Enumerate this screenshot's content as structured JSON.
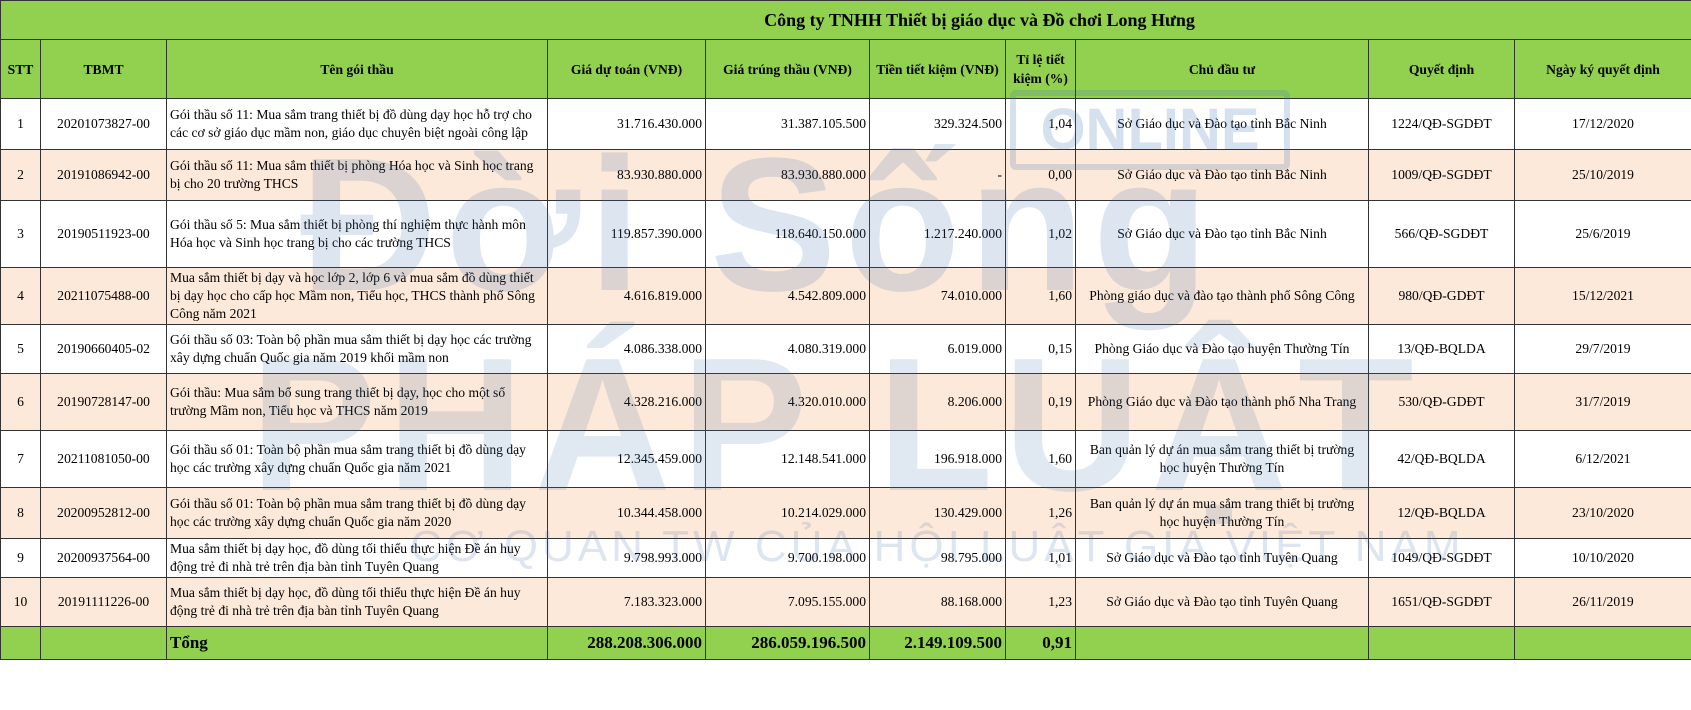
{
  "title": "Công ty TNHH Thiết bị giáo dục và Đồ chơi Long Hưng",
  "headers": {
    "stt": "STT",
    "tbmt": "TBMT",
    "ten_goi_thau": "Tên gói thầu",
    "gia_du_toan": "Giá dự toán (VNĐ)",
    "gia_trung_thau": "Giá trúng thầu (VNĐ)",
    "tien_tiet_kiem": "Tiền tiết kiệm (VNĐ)",
    "ti_le": "Tỉ lệ tiết kiệm (%)",
    "chu_dau_tu": "Chủ đầu tư",
    "quyet_dinh": "Quyết định",
    "ngay_ky": "Ngày ký quyết định"
  },
  "rows": [
    {
      "stt": "1",
      "tbmt": "20201073827-00",
      "ten": "Gói thầu số 11: Mua sắm trang thiết bị đồ dùng dạy học hỗ trợ cho các cơ sở giáo dục mầm non, giáo dục chuyên biệt ngoài công lập",
      "du_toan": "31.716.430.000",
      "trung_thau": "31.387.105.500",
      "tiet_kiem": "329.324.500",
      "ti_le": "1,04",
      "chu_dau_tu": "Sở Giáo dục và Đào tạo tỉnh Bắc Ninh",
      "quyet_dinh": "1224/QĐ-SGDĐT",
      "ngay": "17/12/2020"
    },
    {
      "stt": "2",
      "tbmt": "20191086942-00",
      "ten": "Gói thầu số 11: Mua sắm thiết bị phòng Hóa học và Sinh học trang bị cho 20 trường THCS",
      "du_toan": "83.930.880.000",
      "trung_thau": "83.930.880.000",
      "tiet_kiem": "-",
      "ti_le": "0,00",
      "chu_dau_tu": "Sở Giáo dục và Đào tạo tỉnh Bắc Ninh",
      "quyet_dinh": "1009/QĐ-SGDĐT",
      "ngay": "25/10/2019"
    },
    {
      "stt": "3",
      "tbmt": "20190511923-00",
      "ten": "Gói thầu số 5: Mua sắm thiết bị phòng thí nghiệm thực hành môn Hóa học và Sinh học trang bị cho các trường THCS",
      "du_toan": "119.857.390.000",
      "trung_thau": "118.640.150.000",
      "tiet_kiem": "1.217.240.000",
      "ti_le": "1,02",
      "chu_dau_tu": "Sở Giáo dục và Đào tạo tỉnh Bắc Ninh",
      "quyet_dinh": "566/QĐ-SGDĐT",
      "ngay": "25/6/2019"
    },
    {
      "stt": "4",
      "tbmt": "20211075488-00",
      "ten": "Mua sắm thiết bị dạy và học lớp 2, lớp 6 và mua sắm đồ dùng thiết bị dạy học cho cấp học Mầm non, Tiểu học, THCS thành phố Sông Công năm 2021",
      "du_toan": "4.616.819.000",
      "trung_thau": "4.542.809.000",
      "tiet_kiem": "74.010.000",
      "ti_le": "1,60",
      "chu_dau_tu": "Phòng giáo dục và đào tạo thành phố Sông Công",
      "quyet_dinh": "980/QĐ-GDĐT",
      "ngay": "15/12/2021"
    },
    {
      "stt": "5",
      "tbmt": "20190660405-02",
      "ten": "Gói thầu số 03: Toàn bộ phần mua sắm thiết bị dạy học các trường xây dựng chuẩn Quốc gia năm 2019 khối mầm non",
      "du_toan": "4.086.338.000",
      "trung_thau": "4.080.319.000",
      "tiet_kiem": "6.019.000",
      "ti_le": "0,15",
      "chu_dau_tu": "Phòng Giáo dục và Đào tạo huyện Thường Tín",
      "quyet_dinh": "13/QĐ-BQLDA",
      "ngay": "29/7/2019"
    },
    {
      "stt": "6",
      "tbmt": "20190728147-00",
      "ten": "Gói thầu: Mua sắm bổ sung trang thiết bị dạy, học cho một số trường Mầm non, Tiểu học và THCS năm 2019",
      "du_toan": "4.328.216.000",
      "trung_thau": "4.320.010.000",
      "tiet_kiem": "8.206.000",
      "ti_le": "0,19",
      "chu_dau_tu": "Phòng Giáo dục và Đào tạo thành phố Nha Trang",
      "quyet_dinh": "530/QĐ-GDĐT",
      "ngay": "31/7/2019"
    },
    {
      "stt": "7",
      "tbmt": "20211081050-00",
      "ten": "Gói thầu số 01: Toàn bộ phần mua sắm trang thiết bị đồ dùng dạy học các trường xây dựng chuẩn Quốc gia năm 2021",
      "du_toan": "12.345.459.000",
      "trung_thau": "12.148.541.000",
      "tiet_kiem": "196.918.000",
      "ti_le": "1,60",
      "chu_dau_tu": "Ban quản lý dự án mua sắm trang thiết bị trường học huyện Thường Tín",
      "quyet_dinh": "42/QĐ-BQLDA",
      "ngay": "6/12/2021"
    },
    {
      "stt": "8",
      "tbmt": "20200952812-00",
      "ten": "Gói thầu số 01: Toàn bộ phần mua sắm trang thiết bị đồ dùng dạy học các trường xây dựng chuẩn Quốc gia năm 2020",
      "du_toan": "10.344.458.000",
      "trung_thau": "10.214.029.000",
      "tiet_kiem": "130.429.000",
      "ti_le": "1,26",
      "chu_dau_tu": "Ban quản lý dự án mua sắm trang thiết bị trường học huyện Thường Tín",
      "quyet_dinh": "12/QĐ-BQLDA",
      "ngay": "23/10/2020"
    },
    {
      "stt": "9",
      "tbmt": "20200937564-00",
      "ten": "Mua sắm thiết bị dạy học, đồ dùng tối thiểu thực hiện Đề án huy động trẻ đi nhà trẻ trên địa bàn tỉnh Tuyên Quang",
      "du_toan": "9.798.993.000",
      "trung_thau": "9.700.198.000",
      "tiet_kiem": "98.795.000",
      "ti_le": "1,01",
      "chu_dau_tu": "Sở Giáo dục và Đào tạo tỉnh Tuyên Quang",
      "quyet_dinh": "1049/QĐ-SGDĐT",
      "ngay": "10/10/2020"
    },
    {
      "stt": "10",
      "tbmt": "20191111226-00",
      "ten": "Mua sắm thiết bị dạy học, đồ dùng tối thiểu thực hiện Đề án huy động trẻ đi nhà trẻ trên địa bàn tỉnh Tuyên Quang",
      "du_toan": "7.183.323.000",
      "trung_thau": "7.095.155.000",
      "tiet_kiem": "88.168.000",
      "ti_le": "1,23",
      "chu_dau_tu": "Sở Giáo dục và Đào tạo tỉnh Tuyên Quang",
      "quyet_dinh": "1651/QĐ-SGDĐT",
      "ngay": "26/11/2019"
    }
  ],
  "total": {
    "label": "Tổng",
    "du_toan": "288.208.306.000",
    "trung_thau": "286.059.196.500",
    "tiet_kiem": "2.149.109.500",
    "ti_le": "0,91"
  },
  "watermark": {
    "badge": "ONLINE",
    "line1": "Đời Sống",
    "line2": "PHÁP LUẬT",
    "line3": "CƠ QUAN TW CỦA HỘI LUẬT GIA VIỆT NAM"
  }
}
